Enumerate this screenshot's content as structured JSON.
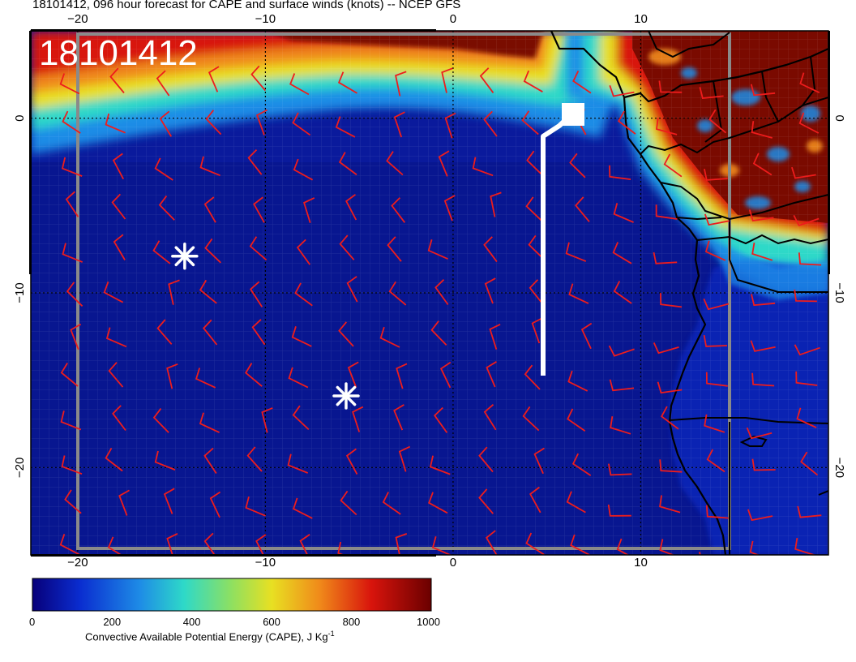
{
  "title": "18101412, 096 hour forecast for CAPE and surface winds (knots) -- NCEP GFS",
  "stamp": "18101412",
  "axes": {
    "lon_range": [
      -22.5,
      20
    ],
    "lat_range": [
      -25,
      5
    ],
    "x_ticks": [
      {
        "value": -20,
        "label": "−20"
      },
      {
        "value": -10,
        "label": "−10"
      },
      {
        "value": 0,
        "label": "0"
      },
      {
        "value": 10,
        "label": "10"
      }
    ],
    "y_ticks": [
      {
        "value": 0,
        "label": "0"
      },
      {
        "value": -10,
        "label": "−10"
      },
      {
        "value": -20,
        "label": "−20"
      }
    ]
  },
  "colorbar": {
    "ticks": [
      "0",
      "200",
      "400",
      "600",
      "800",
      "1000"
    ],
    "label": "Convective Available Potential Energy (CAPE), J Kg",
    "label_sup": "-1",
    "colors": [
      "#08007a",
      "#0a2dd0",
      "#1e8ce6",
      "#2ed9c8",
      "#8fe060",
      "#e8e022",
      "#f08a1a",
      "#d8140c",
      "#6a0000"
    ]
  },
  "colors": {
    "ocean": "#0a1a9c",
    "land_cape": "#7a0a00",
    "barb": "#ee1c1c",
    "coast": "#000000",
    "grid": "#000000",
    "track": "#ffffff"
  },
  "markers": [
    {
      "name": "asterisk-marker",
      "lon": -14.3,
      "lat": -7.9
    },
    {
      "name": "asterisk-marker",
      "lon": -5.7,
      "lat": -15.9
    }
  ],
  "track": {
    "points": [
      [
        5,
        -15
      ],
      [
        5,
        -1
      ],
      [
        6,
        0
      ],
      [
        6.8,
        0.3
      ]
    ]
  }
}
